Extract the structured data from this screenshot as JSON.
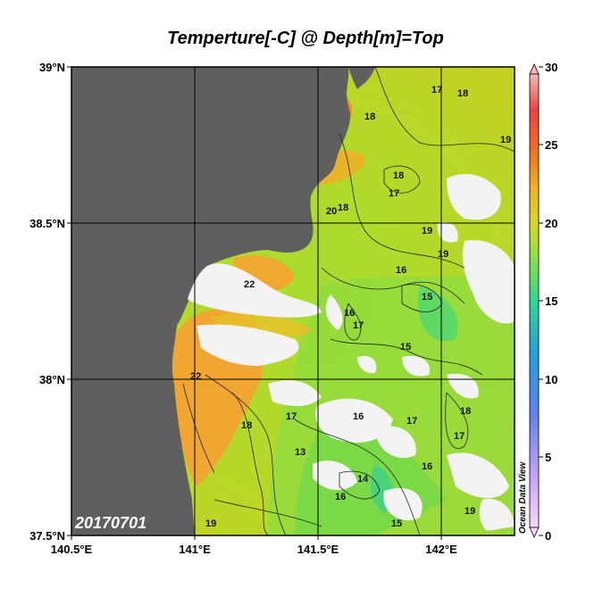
{
  "title": "Temperture[-C] @ Depth[m]=Top",
  "lat_labels": [
    "39°N",
    "38.5°N",
    "38°N",
    "37.5°N"
  ],
  "lon_labels": [
    "140.5°E",
    "141°E",
    "141.5°E",
    "142°E"
  ],
  "date_stamp": "20170701",
  "watermark": "Ocean Data View",
  "colorbar": {
    "ticks": [
      "30",
      "25",
      "20",
      "15",
      "10",
      "5",
      "0"
    ],
    "range": [
      0,
      30
    ]
  },
  "contour_labels": [
    "17",
    "18",
    "18",
    "19",
    "18",
    "17",
    "20",
    "18",
    "19",
    "19",
    "16",
    "15",
    "16",
    "17",
    "22",
    "22",
    "18",
    "17",
    "16",
    "15",
    "14",
    "13",
    "16",
    "17",
    "18",
    "19",
    "15",
    "16",
    "17",
    "19"
  ],
  "colors": {
    "land": "#5f5f5f",
    "missing": "#f2f2f2",
    "warm": "#f0a028",
    "mid": "#c8d41c",
    "cool": "#7edc3c"
  }
}
